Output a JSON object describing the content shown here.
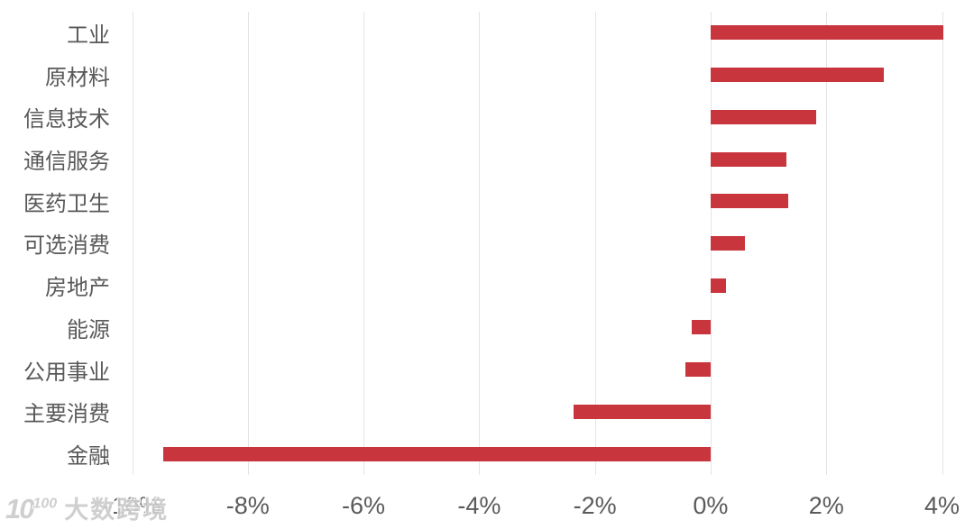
{
  "chart_data": {
    "type": "bar",
    "orientation": "horizontal",
    "title": "",
    "xlabel": "",
    "ylabel": "",
    "unit": "%",
    "categories": [
      "工业",
      "原材料",
      "信息技术",
      "通信服务",
      "医药卫生",
      "可选消费",
      "房地产",
      "能源",
      "公用事业",
      "主要消费",
      "金融"
    ],
    "values": [
      4.02,
      3.0,
      1.82,
      1.31,
      1.34,
      0.6,
      0.27,
      -0.33,
      -0.44,
      -2.37,
      -9.46
    ],
    "x_ticks": [
      {
        "label": "-10%",
        "value": -10
      },
      {
        "label": "-8%",
        "value": -8
      },
      {
        "label": "-6%",
        "value": -6
      },
      {
        "label": "-4%",
        "value": -4
      },
      {
        "label": "-2%",
        "value": -2
      },
      {
        "label": "0%",
        "value": 0
      },
      {
        "label": "2%",
        "value": 2
      },
      {
        "label": "4%",
        "value": 4
      }
    ],
    "xlim": [
      -10,
      4
    ],
    "grid": true,
    "legend": false,
    "bar_color": "#c9353c",
    "gridline_color": "#e4e4e4",
    "label_color": "#595959",
    "tick_color": "#5a5a5a"
  },
  "watermark": {
    "logo_base": "10",
    "logo_exp": "100",
    "text": "大数跨境"
  }
}
